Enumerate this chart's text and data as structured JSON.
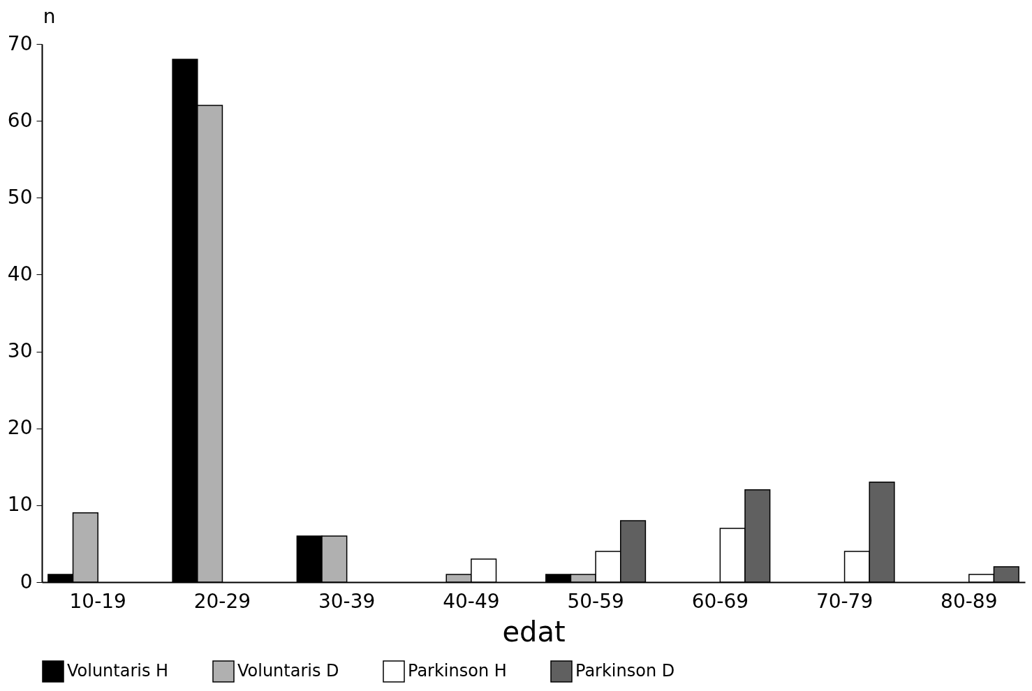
{
  "chart_data": {
    "type": "bar",
    "xlabel": "edat",
    "ylabel": "n",
    "categories": [
      "10-19",
      "20-29",
      "30-39",
      "40-49",
      "50-59",
      "60-69",
      "70-79",
      "80-89"
    ],
    "series": [
      {
        "name": "Voluntaris H",
        "color": "#000000",
        "values": [
          1,
          68,
          6,
          0,
          1,
          0,
          0,
          0
        ]
      },
      {
        "name": "Voluntaris D",
        "color": "#b0b0b0",
        "values": [
          9,
          62,
          6,
          1,
          1,
          0,
          0,
          0
        ]
      },
      {
        "name": "Parkinson H",
        "color": "#ffffff",
        "values": [
          0,
          0,
          0,
          3,
          4,
          7,
          4,
          1
        ]
      },
      {
        "name": "Parkinson D",
        "color": "#606060",
        "values": [
          0,
          0,
          0,
          0,
          8,
          12,
          13,
          2
        ]
      }
    ],
    "ylim": [
      0,
      70
    ],
    "yticks": [
      0,
      10,
      20,
      30,
      40,
      50,
      60,
      70
    ],
    "grid": false,
    "legend": "bottom"
  }
}
